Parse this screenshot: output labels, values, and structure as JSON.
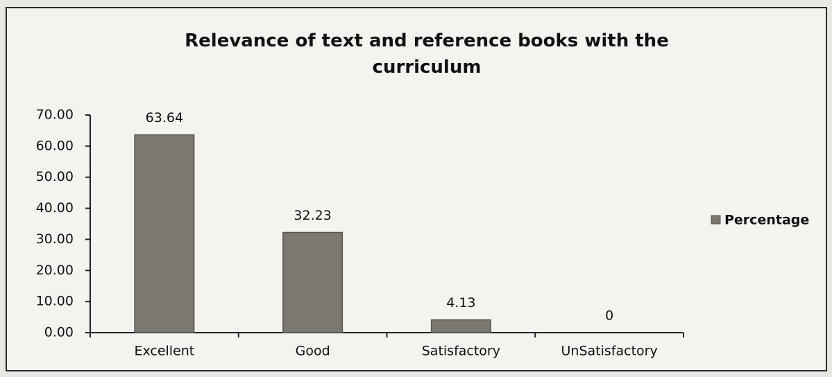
{
  "chart_data": {
    "type": "bar",
    "title": "Relevance of text and reference books with the curriculum",
    "categories": [
      "Excellent",
      "Good",
      "Satisfactory",
      "UnSatisfactory"
    ],
    "series": [
      {
        "name": "Percentage",
        "color": "#7b786f",
        "values": [
          63.64,
          32.23,
          4.13,
          0
        ]
      }
    ],
    "ylim": [
      0,
      70
    ],
    "yticks": [
      {
        "value": 0,
        "label": "0.00"
      },
      {
        "value": 10,
        "label": "10.00"
      },
      {
        "value": 20,
        "label": "20.00"
      },
      {
        "value": 30,
        "label": "30.00"
      },
      {
        "value": 40,
        "label": "40.00"
      },
      {
        "value": 50,
        "label": "50.00"
      },
      {
        "value": 60,
        "label": "60.00"
      },
      {
        "value": 70,
        "label": "70.00"
      }
    ],
    "grid": false,
    "legend": "right"
  }
}
